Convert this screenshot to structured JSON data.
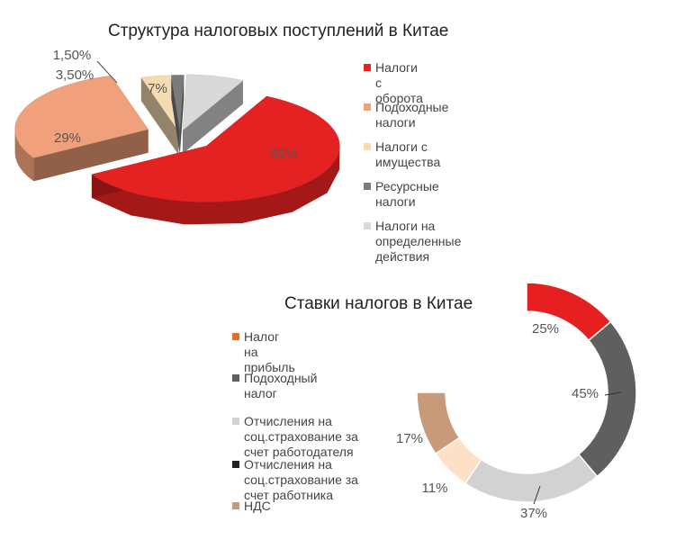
{
  "chart_data": [
    {
      "type": "pie",
      "title": "Структура налоговых поступлений в Китае",
      "categories": [
        "Налоги с оборота",
        "Подоходные налоги",
        "Налоги с имущества",
        "Ресурсные налоги",
        "Налоги на определенные действия"
      ],
      "values": [
        59,
        29,
        3.5,
        1.5,
        7
      ],
      "data_labels": [
        "59%",
        "29%",
        "3,50%",
        "1,50%",
        "7%"
      ],
      "colors": [
        "#e52222",
        "#f0a07a",
        "#f5dbb0",
        "#7a7a7a",
        "#d9d9d9"
      ],
      "legend_position": "right"
    },
    {
      "type": "pie",
      "variant": "doughnut",
      "title": "Ставки налогов в Китае",
      "categories": [
        "Налог на прибыль",
        "Подоходный налог",
        "Отчисления на соц.страхование за счет работодателя",
        "Отчисления на соц.страхование за счет работника",
        "НДС"
      ],
      "values": [
        25,
        45,
        37,
        11,
        17
      ],
      "data_labels": [
        "25%",
        "45%",
        "37%",
        "11%",
        "17%"
      ],
      "colors": [
        "#e62020",
        "#5f5f5f",
        "#d2d2d2",
        "#fde0c6",
        "#c99a7a"
      ],
      "legend_colors": [
        "#e07020",
        "#5f5f5f",
        "#d2d2d2",
        "#222222",
        "#c99a7a"
      ],
      "legend_position": "left"
    }
  ]
}
